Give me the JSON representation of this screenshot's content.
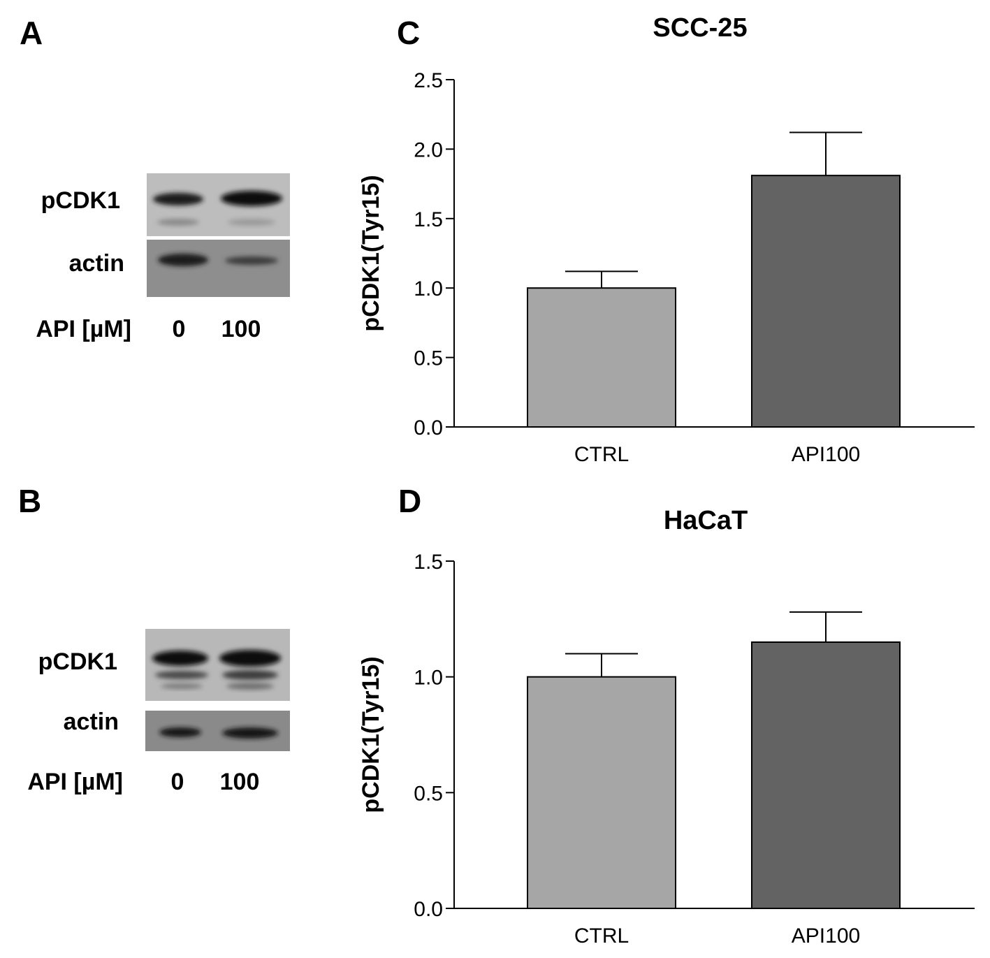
{
  "panels": {
    "A": {
      "letter": "A",
      "band_labels": [
        "pCDK1",
        "actin"
      ],
      "lane_axis_label": "API [µM]",
      "lanes": [
        "0",
        "100"
      ]
    },
    "B": {
      "letter": "B",
      "band_labels": [
        "pCDK1",
        "actin"
      ],
      "lane_axis_label": "API [µM]",
      "lanes": [
        "0",
        "100"
      ]
    },
    "C": {
      "letter": "C"
    },
    "D": {
      "letter": "D"
    }
  },
  "chart_data": [
    {
      "type": "bar",
      "panel": "C",
      "title": "SCC-25",
      "categories": [
        "CTRL",
        "API100"
      ],
      "values": [
        1.0,
        1.81
      ],
      "errors": [
        0.12,
        0.31
      ],
      "ylabel": "pCDK1(Tyr15)",
      "ylim": [
        0,
        2.5
      ],
      "yticks": [
        "0.0",
        "0.5",
        "1.0",
        "1.5",
        "2.0",
        "2.5"
      ],
      "bar_colors": [
        "#a6a6a6",
        "#636363"
      ],
      "grid": false
    },
    {
      "type": "bar",
      "panel": "D",
      "title": "HaCaT",
      "categories": [
        "CTRL",
        "API100"
      ],
      "values": [
        1.0,
        1.15
      ],
      "errors": [
        0.1,
        0.13
      ],
      "ylabel": "pCDK1(Tyr15)",
      "ylim": [
        0,
        1.5
      ],
      "yticks": [
        "0.0",
        "0.5",
        "1.0",
        "1.5"
      ],
      "bar_colors": [
        "#a6a6a6",
        "#636363"
      ],
      "grid": false
    }
  ]
}
